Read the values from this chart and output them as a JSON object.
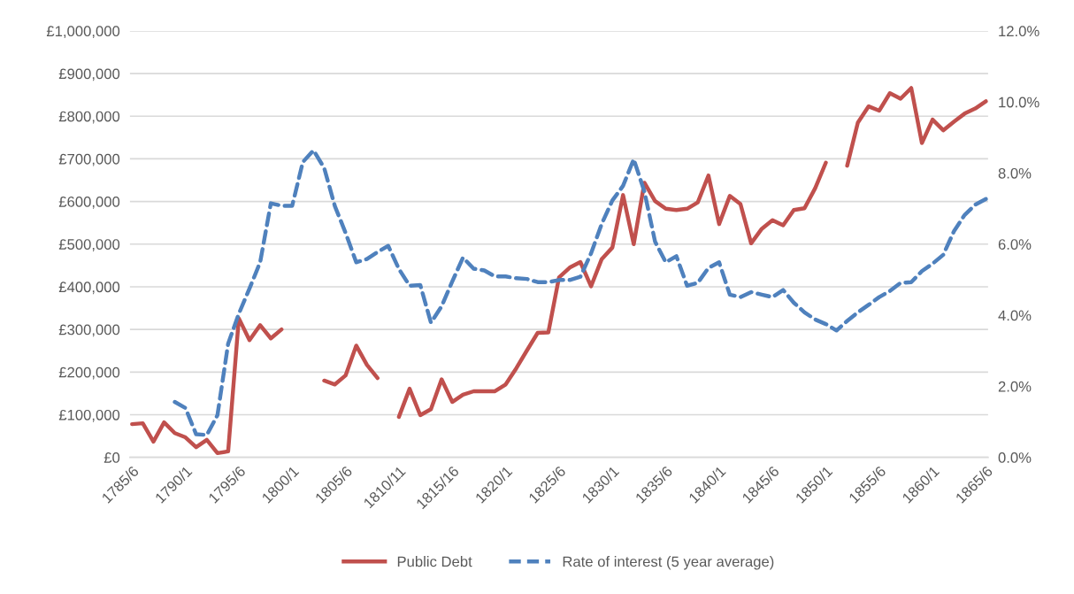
{
  "chart_data": {
    "type": "line",
    "categories": [
      "1785/6",
      null,
      null,
      null,
      null,
      "1790/1",
      null,
      null,
      null,
      null,
      "1795/6",
      null,
      null,
      null,
      null,
      "1800/1",
      null,
      null,
      null,
      null,
      "1805/6",
      null,
      null,
      null,
      null,
      "1810/11",
      null,
      null,
      null,
      null,
      "1815/16",
      null,
      null,
      null,
      null,
      "1820/1",
      null,
      null,
      null,
      null,
      "1825/6",
      null,
      null,
      null,
      null,
      "1830/1",
      null,
      null,
      null,
      null,
      "1835/6",
      null,
      null,
      null,
      null,
      "1840/1",
      null,
      null,
      null,
      null,
      "1845/6",
      null,
      null,
      null,
      null,
      "1850/1",
      null,
      null,
      null,
      null,
      "1855/6",
      null,
      null,
      null,
      null,
      "1860/1",
      null,
      null,
      null,
      null,
      "1865/6"
    ],
    "series": [
      {
        "name": "Public Debt",
        "color": "#c0504d",
        "line_style": "solid",
        "values": [
          78000,
          80000,
          37000,
          82000,
          57000,
          47000,
          24000,
          41000,
          10000,
          14000,
          326000,
          275000,
          310000,
          279000,
          300000,
          null,
          null,
          null,
          180000,
          171000,
          192000,
          262000,
          217000,
          186000,
          null,
          95000,
          161000,
          99000,
          113000,
          183000,
          130000,
          147000,
          155000,
          155000,
          155000,
          171000,
          209000,
          251000,
          292000,
          293000,
          422000,
          445000,
          458000,
          401000,
          465000,
          492000,
          615000,
          500000,
          644000,
          601000,
          583000,
          580000,
          583000,
          598000,
          661000,
          547000,
          613000,
          594000,
          502000,
          536000,
          556000,
          544000,
          580000,
          584000,
          631000,
          691000,
          null,
          684000,
          785000,
          823000,
          813000,
          854000,
          841000,
          866000,
          737000,
          792000,
          767000,
          787000,
          806000,
          818000,
          835000
        ]
      },
      {
        "name": "Rate of interest (5 year average)",
        "color": "#4f81bd",
        "line_style": "dashed",
        "axis": "y2",
        "values": [
          null,
          null,
          null,
          null,
          1.56,
          1.39,
          0.65,
          0.63,
          1.19,
          3.2,
          4.04,
          4.75,
          5.49,
          7.15,
          7.08,
          7.08,
          8.31,
          8.64,
          8.14,
          7.07,
          6.32,
          5.49,
          5.58,
          5.78,
          5.95,
          5.3,
          4.83,
          4.85,
          3.79,
          4.25,
          4.95,
          5.62,
          5.31,
          5.26,
          5.09,
          5.09,
          5.04,
          5.02,
          4.93,
          4.93,
          4.99,
          4.99,
          5.08,
          5.74,
          6.57,
          7.23,
          7.64,
          8.39,
          7.48,
          6.07,
          5.49,
          5.66,
          4.83,
          4.91,
          5.33,
          5.49,
          4.58,
          4.51,
          4.65,
          4.58,
          4.51,
          4.71,
          4.35,
          4.08,
          3.88,
          3.75,
          3.57,
          3.84,
          4.08,
          4.29,
          4.51,
          4.68,
          4.91,
          4.93,
          5.24,
          5.45,
          5.7,
          6.36,
          6.82,
          7.11,
          7.27
        ]
      }
    ],
    "ylim": [
      0,
      1000000
    ],
    "yticks": [
      {
        "value": 0,
        "label": "£0"
      },
      {
        "value": 100000,
        "label": "£100,000"
      },
      {
        "value": 200000,
        "label": "£200,000"
      },
      {
        "value": 300000,
        "label": "£300,000"
      },
      {
        "value": 400000,
        "label": "£400,000"
      },
      {
        "value": 500000,
        "label": "£500,000"
      },
      {
        "value": 600000,
        "label": "£600,000"
      },
      {
        "value": 700000,
        "label": "£700,000"
      },
      {
        "value": 800000,
        "label": "£800,000"
      },
      {
        "value": 900000,
        "label": "£900,000"
      },
      {
        "value": 1000000,
        "label": "£1,000,000"
      }
    ],
    "y2lim": [
      0,
      12
    ],
    "y2ticks": [
      {
        "value": 0,
        "label": "0.0%"
      },
      {
        "value": 2,
        "label": "2.0%"
      },
      {
        "value": 4,
        "label": "4.0%"
      },
      {
        "value": 6,
        "label": "6.0%"
      },
      {
        "value": 8,
        "label": "8.0%"
      },
      {
        "value": 10,
        "label": "10.0%"
      },
      {
        "value": 12,
        "label": "12.0%"
      }
    ],
    "grid": "y",
    "legend": "bottom",
    "marker": "none"
  }
}
